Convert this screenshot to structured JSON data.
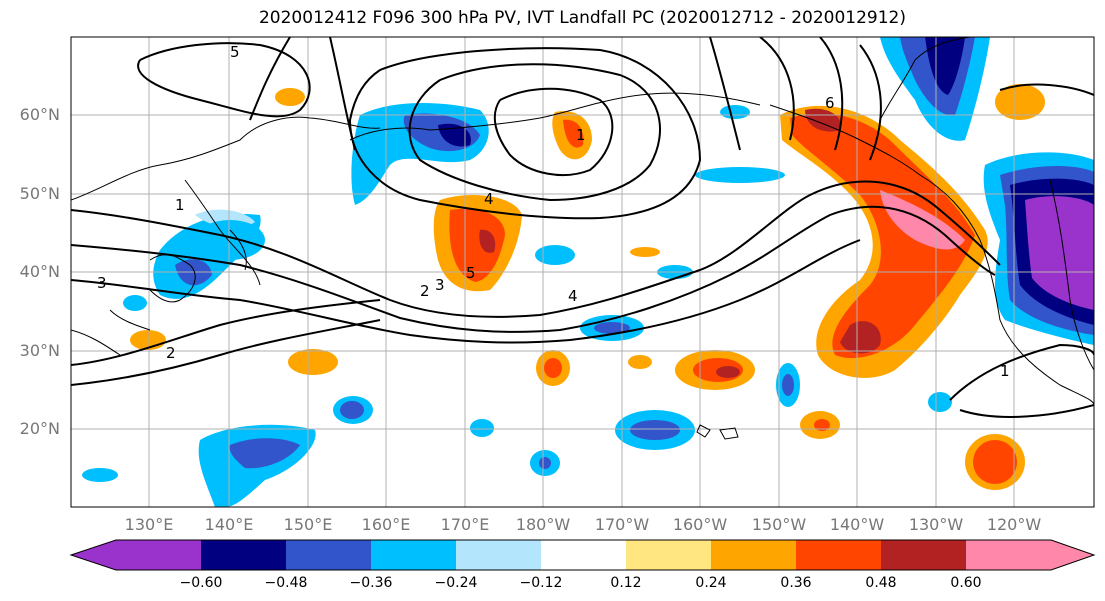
{
  "title": "2020012412 F096 300 hPa PV, IVT Landfall PC (2020012712 - 2020012912)",
  "lat_labels": [
    "60°N",
    "50°N",
    "40°N",
    "30°N",
    "20°N"
  ],
  "lon_labels": [
    "130°E",
    "140°E",
    "150°E",
    "160°E",
    "170°E",
    "180°W",
    "170°W",
    "160°W",
    "150°W",
    "140°W",
    "130°W",
    "120°W"
  ],
  "colorbar": {
    "ticks": [
      "−0.60",
      "−0.48",
      "−0.36",
      "−0.24",
      "−0.12",
      "0.12",
      "0.24",
      "0.36",
      "0.48",
      "0.60"
    ],
    "colors": [
      "#9933cc",
      "#000080",
      "#3355cc",
      "#00bfff",
      "#b3e5fc",
      "#ffffff",
      "#ffe680",
      "#ffa500",
      "#ff4500",
      "#b22222",
      "#ff88aa"
    ]
  },
  "contour_labels": [
    "5",
    "1",
    "2",
    "3",
    "4",
    "5",
    "6",
    "1",
    "1",
    "2",
    "3",
    "4"
  ]
}
